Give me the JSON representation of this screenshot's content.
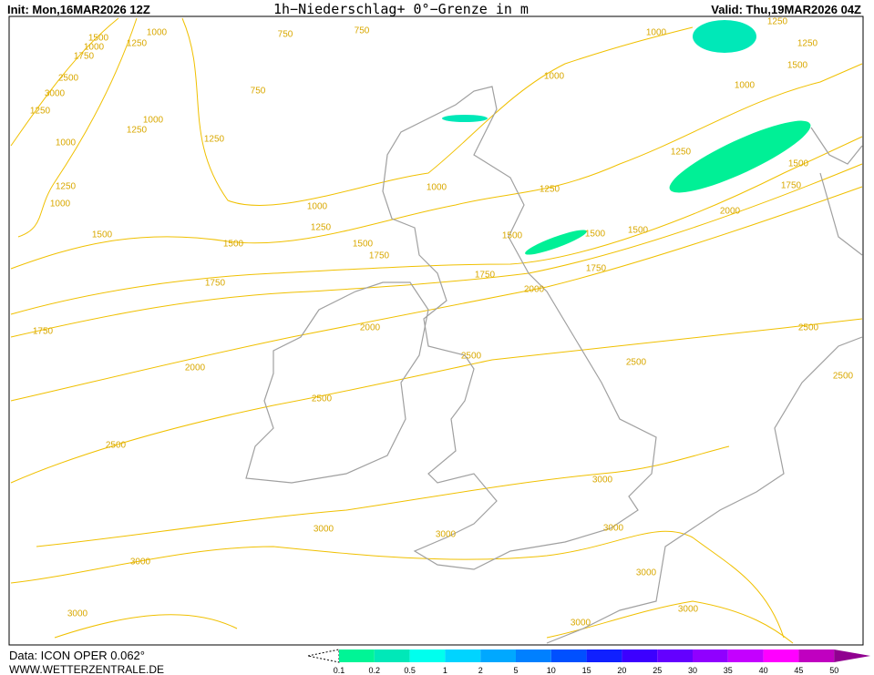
{
  "header": {
    "init": "Init: Mon,16MAR2026 12Z",
    "title": "1h−Niederschlag+ 0°−Grenze in m",
    "valid": "Valid: Thu,19MAR2026 04Z"
  },
  "footer": {
    "data": "Data: ICON OPER 0.062°",
    "website": "WWW.WETTERZENTRALE.DE"
  },
  "legend": {
    "labels": [
      "0.1",
      "0.2",
      "0.5",
      "1",
      "2",
      "5",
      "10",
      "15",
      "20",
      "25",
      "30",
      "35",
      "40",
      "45",
      "50"
    ],
    "colors": [
      "#00f596",
      "#00e8b8",
      "#00ffee",
      "#00d4ff",
      "#00a8ff",
      "#0080ff",
      "#0050ff",
      "#1020ff",
      "#3c00ff",
      "#6400ff",
      "#9000ff",
      "#c400ff",
      "#ff00ff",
      "#c000c0",
      "#900090"
    ]
  },
  "contour_labels": [
    "1500",
    "1000",
    "1250",
    "1000",
    "1750",
    "2500",
    "3000",
    "1250",
    "1000",
    "1250",
    "1000",
    "1250",
    "1250",
    "1000",
    "750",
    "750",
    "750",
    "1000",
    "1000",
    "1000",
    "1250",
    "1250",
    "1500",
    "1000",
    "1000",
    "1250",
    "1250",
    "1250",
    "1500",
    "1500",
    "1500",
    "1500",
    "1500",
    "1500",
    "1500",
    "1750",
    "1750",
    "1750",
    "1750",
    "1750",
    "1750",
    "2000",
    "2000",
    "2000",
    "2000",
    "2500",
    "2500",
    "2500",
    "2500",
    "2500",
    "2500",
    "3000",
    "3000",
    "3000",
    "3000",
    "3000",
    "3000",
    "3000",
    "3000",
    "3000"
  ]
}
